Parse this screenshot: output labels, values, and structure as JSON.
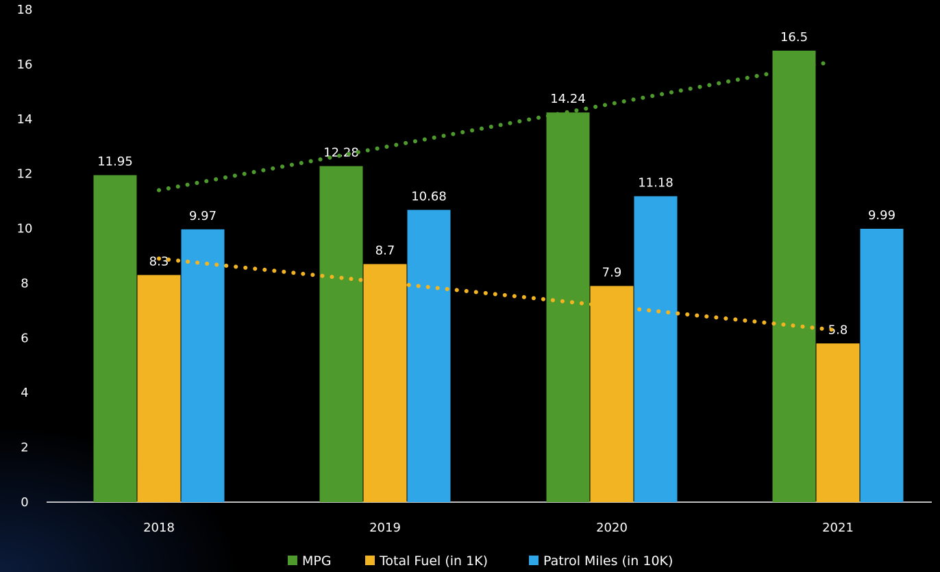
{
  "chart_data": {
    "type": "bar",
    "title": "",
    "xlabel": "",
    "ylabel": "",
    "categories": [
      "2018",
      "2019",
      "2020",
      "2021"
    ],
    "ylim": [
      0,
      18
    ],
    "yticks": [
      "0",
      "2",
      "4",
      "6",
      "8",
      "10",
      "12",
      "14",
      "16",
      "18"
    ],
    "grid": false,
    "legend_position": "bottom",
    "series": [
      {
        "name": "MPG",
        "color": "#4e9a2c",
        "values": [
          11.95,
          12.28,
          14.24,
          16.5
        ],
        "labels": [
          "11.95",
          "12.28",
          "14.24",
          "16.5"
        ],
        "trendline": {
          "style": "dotted",
          "color": "#4e9a2c",
          "start": 11.4,
          "end": 16.1
        }
      },
      {
        "name": "Total Fuel (in 1K)",
        "color": "#f2b422",
        "values": [
          8.3,
          8.7,
          7.9,
          5.8
        ],
        "labels": [
          "8.3",
          "8.7",
          "7.9",
          "5.8"
        ],
        "trendline": {
          "style": "dotted",
          "color": "#f2b422",
          "start": 8.9,
          "end": 6.3
        }
      },
      {
        "name": "Patrol Miles (in 10K)",
        "color": "#2ea6e8",
        "values": [
          9.97,
          10.68,
          11.18,
          9.99
        ],
        "labels": [
          "9.97",
          "10.68",
          "11.18",
          "9.99"
        ]
      }
    ]
  }
}
